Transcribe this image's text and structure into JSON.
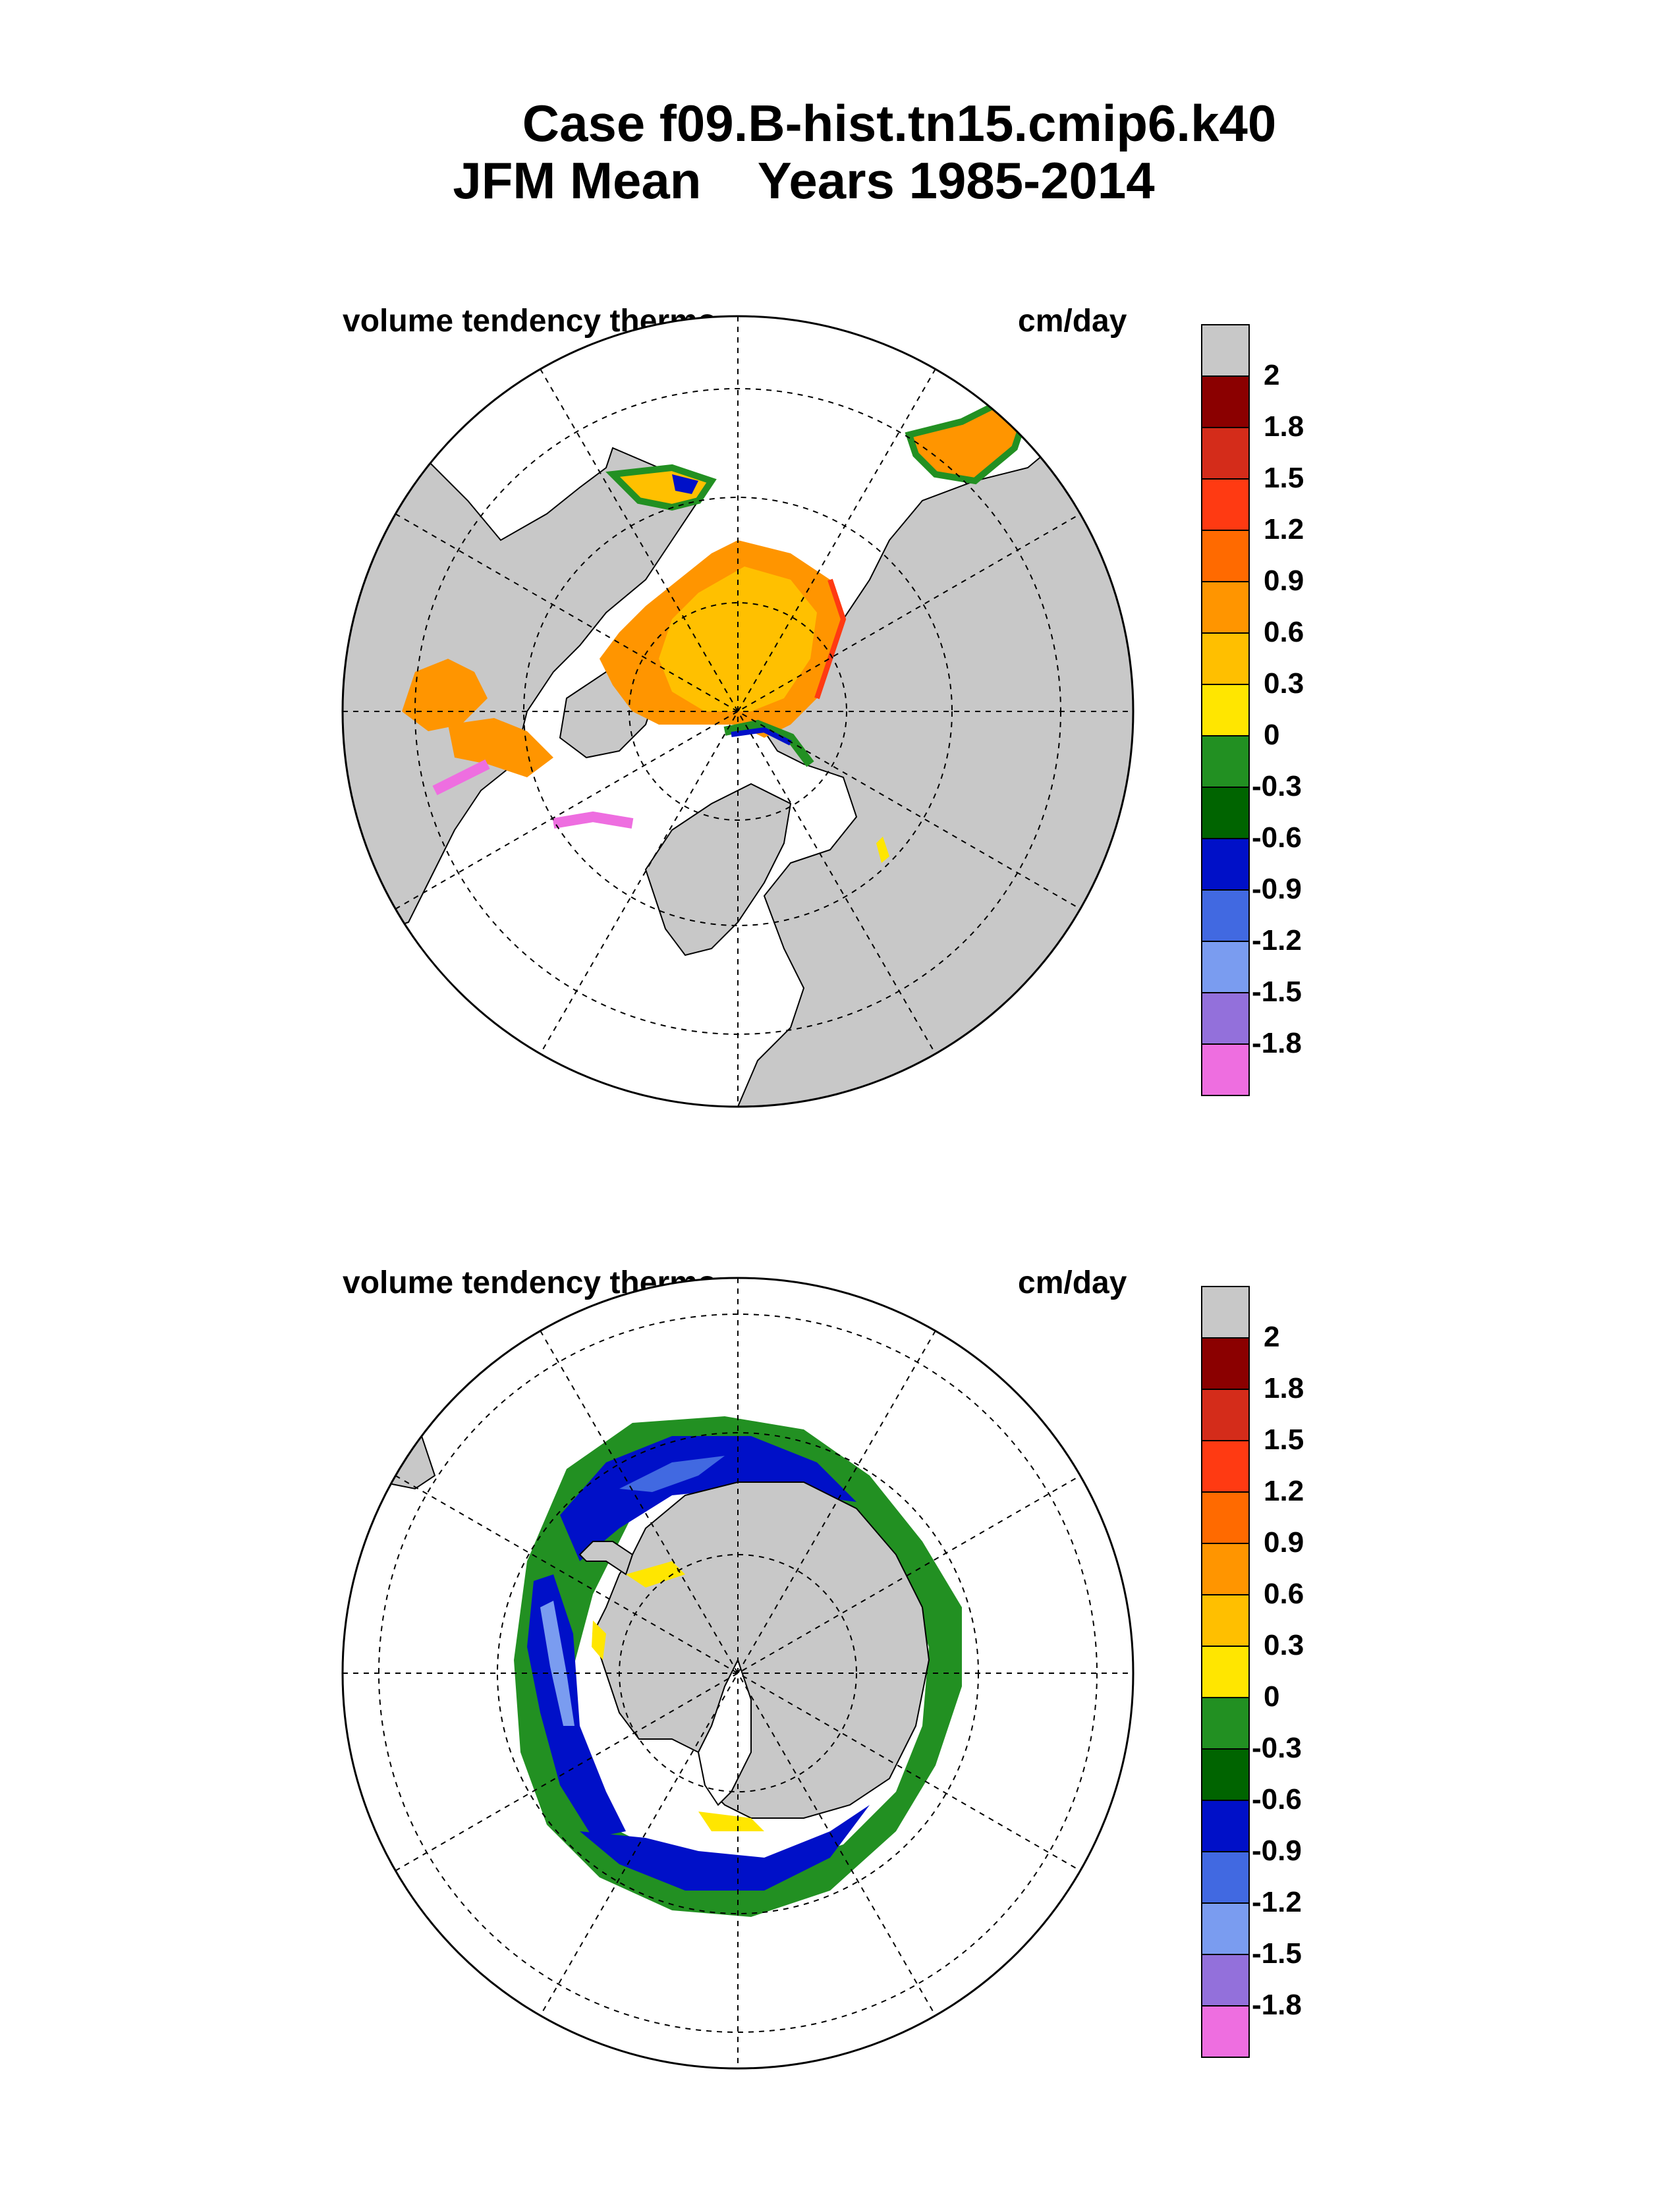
{
  "title": {
    "line1": "Case f09.B-hist.tn15.cmip6.k40",
    "line2": "JFM Mean    Years 1985-2014"
  },
  "panels": [
    {
      "id": "north",
      "hemisphere": "Northern Hemisphere (Arctic)",
      "label_left": "volume tendency thermo",
      "label_right": "cm/day"
    },
    {
      "id": "south",
      "hemisphere": "Southern Hemisphere (Antarctic)",
      "label_left": "volume tendency thermo",
      "label_right": "cm/day"
    }
  ],
  "colorbar": {
    "labels": [
      "2",
      "1.8",
      "1.5",
      "1.2",
      "0.9",
      "0.6",
      "0.3",
      "0",
      "-0.3",
      "-0.6",
      "-0.9",
      "-1.2",
      "-1.5",
      "-1.8"
    ],
    "colors": [
      "#c8c8c8",
      "#8b0000",
      "#d42c1a",
      "#ff3a12",
      "#ff6a00",
      "#ff9500",
      "#ffbf00",
      "#ffe600",
      "#229022",
      "#006400",
      "#0010c8",
      "#4169e1",
      "#7a9cf0",
      "#9370db",
      "#ee6ee0"
    ]
  },
  "colors": {
    "land": "#c8c8c8",
    "ice_central": "#ffc000",
    "ice_orange": "#ff9500",
    "ice_edge_red": "#ff3a12",
    "green": "#229022",
    "dark_green": "#006400",
    "blue": "#0010c8",
    "light_blue": "#7a9cf0",
    "pink": "#ee6ee0",
    "yellow": "#ffe600"
  }
}
